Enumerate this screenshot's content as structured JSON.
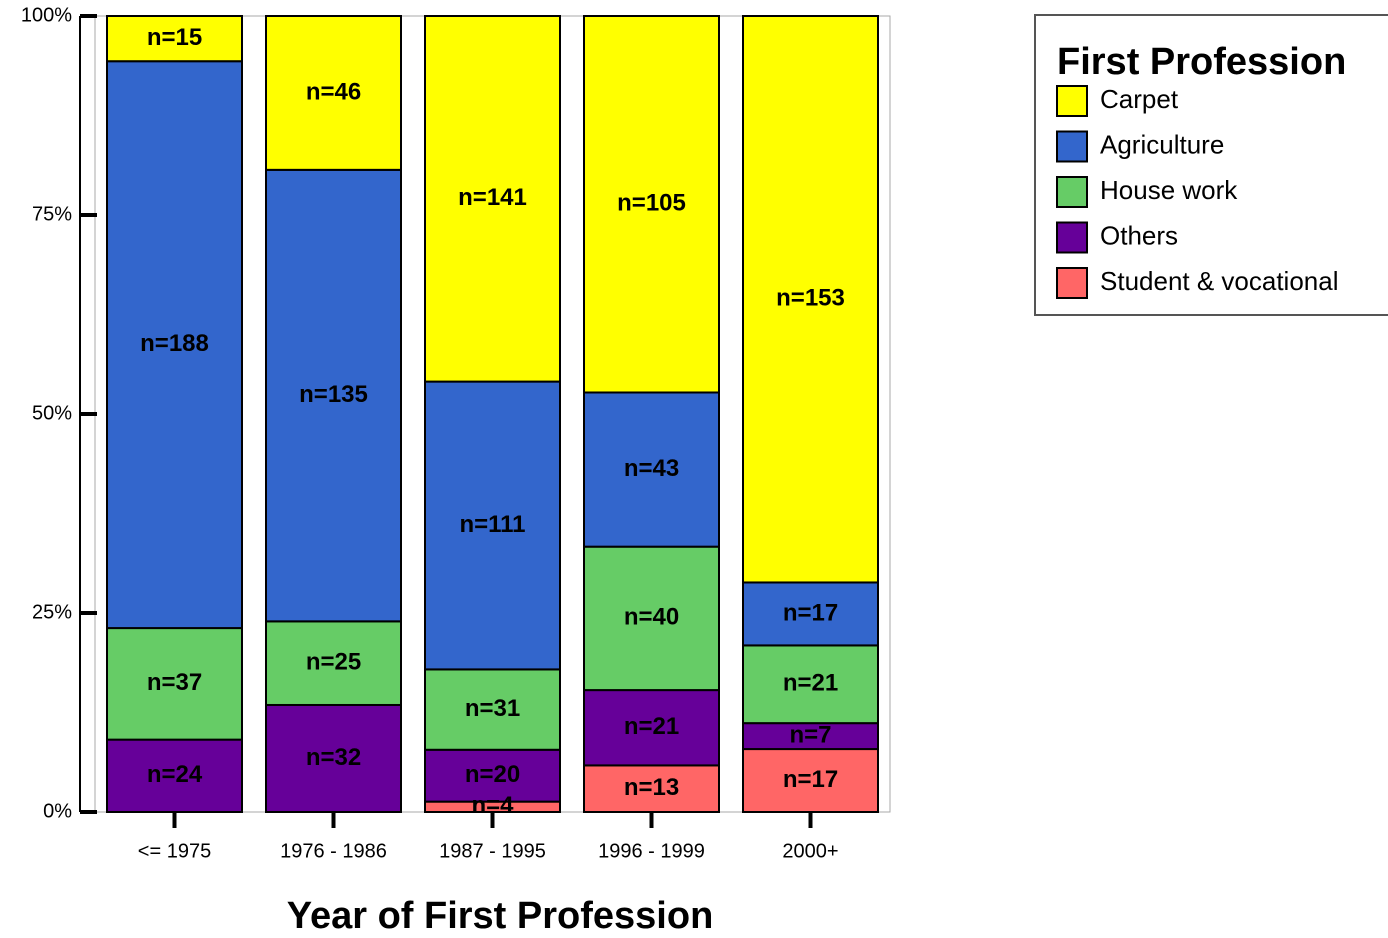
{
  "chart_data": {
    "type": "bar",
    "stacking": "percent",
    "x_label": "Year of First Profession",
    "legend_title": "First Profession",
    "legend": "top-right",
    "categories": [
      "<= 1975",
      "1976 - 1986",
      "1987 - 1995",
      "1996 - 1999",
      "2000+"
    ],
    "series": [
      {
        "name": "Carpet",
        "color": "#ffff00",
        "values": [
          15,
          46,
          141,
          105,
          153
        ],
        "value_labels": [
          "n=15",
          "n=46",
          "n=141",
          "n=105",
          "n=153"
        ]
      },
      {
        "name": "Agriculture",
        "color": "#3366cc",
        "values": [
          188,
          135,
          111,
          43,
          17
        ],
        "value_labels": [
          "n=188",
          "n=135",
          "n=111",
          "n=43",
          "n=17"
        ]
      },
      {
        "name": "House work",
        "color": "#66cc66",
        "values": [
          37,
          25,
          31,
          40,
          21
        ],
        "value_labels": [
          "n=37",
          "n=25",
          "n=31",
          "n=40",
          "n=21"
        ]
      },
      {
        "name": "Others",
        "color": "#660099",
        "values": [
          24,
          32,
          20,
          21,
          7
        ],
        "value_labels": [
          "n=24",
          "n=32",
          "n=20",
          "n=21",
          "n=7"
        ]
      },
      {
        "name": "Student & vocational",
        "color": "#ff6666",
        "values": [
          null,
          null,
          4,
          13,
          17
        ],
        "value_labels": [
          null,
          null,
          "n=4",
          "n=13",
          "n=17"
        ]
      }
    ],
    "ylim": [
      0,
      100
    ],
    "yticks": [
      {
        "value": 0,
        "label": "0%"
      },
      {
        "value": 25,
        "label": "25%"
      },
      {
        "value": 50,
        "label": "50%"
      },
      {
        "value": 75,
        "label": "75%"
      },
      {
        "value": 100,
        "label": "100%"
      }
    ]
  }
}
